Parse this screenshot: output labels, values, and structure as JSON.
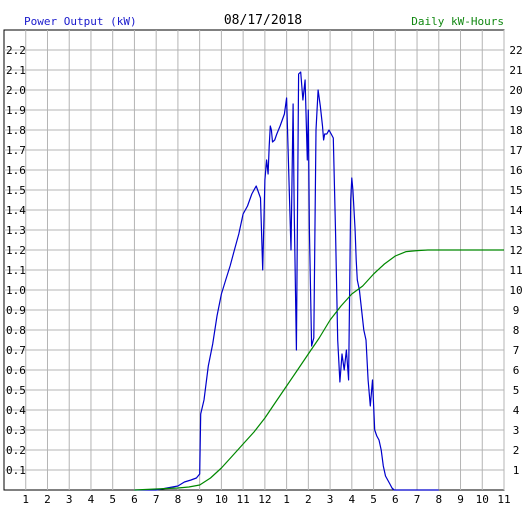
{
  "chart_data": {
    "type": "line",
    "date": "08/17/2018",
    "left_axis_label": "Power Output (kW)",
    "right_axis_label": "Daily kW-Hours",
    "left_ylim": [
      0,
      2.3
    ],
    "right_ylim": [
      0,
      23
    ],
    "xlim": [
      0,
      23
    ],
    "x_tick_labels": [
      "1",
      "2",
      "3",
      "4",
      "5",
      "6",
      "7",
      "8",
      "9",
      "10",
      "11",
      "12",
      "1",
      "2",
      "3",
      "4",
      "5",
      "6",
      "7",
      "8",
      "9",
      "10",
      "11"
    ],
    "left_tick_labels": [
      "0.1",
      "0.2",
      "0.3",
      "0.4",
      "0.5",
      "0.6",
      "0.7",
      "0.8",
      "0.9",
      "1.0",
      "1.1",
      "1.2",
      "1.3",
      "1.4",
      "1.5",
      "1.6",
      "1.7",
      "1.8",
      "1.9",
      "2.0",
      "2.1",
      "2.2"
    ],
    "right_tick_labels": [
      "1",
      "2",
      "3",
      "4",
      "5",
      "6",
      "7",
      "8",
      "9",
      "10",
      "11",
      "12",
      "13",
      "14",
      "15",
      "16",
      "17",
      "18",
      "19",
      "20",
      "21",
      "22"
    ],
    "grid": true,
    "series": [
      {
        "name": "Power Output (kW)",
        "axis": "left",
        "color": "#0000cc",
        "x": [
          6.0,
          6.5,
          7.0,
          7.5,
          8.0,
          8.3,
          8.6,
          8.85,
          9.0,
          9.05,
          9.2,
          9.4,
          9.6,
          9.8,
          10.0,
          10.2,
          10.4,
          10.6,
          10.8,
          11.0,
          11.2,
          11.4,
          11.6,
          11.8,
          11.9,
          12.0,
          12.08,
          12.15,
          12.2,
          12.25,
          12.3,
          12.35,
          12.45,
          12.55,
          12.7,
          12.9,
          13.0,
          13.2,
          13.3,
          13.35,
          13.45,
          13.55,
          13.65,
          13.75,
          13.85,
          13.95,
          14.0,
          14.05,
          14.15,
          14.25,
          14.35,
          14.45,
          14.55,
          14.65,
          14.7,
          14.75,
          14.85,
          14.95,
          15.05,
          15.15,
          15.25,
          15.35,
          15.45,
          15.55,
          15.65,
          15.75,
          15.85,
          15.95,
          16.0,
          16.05,
          16.15,
          16.2,
          16.25,
          16.35,
          16.45,
          16.55,
          16.65,
          16.75,
          16.85,
          16.95,
          17.05,
          17.15,
          17.25,
          17.35,
          17.45,
          17.55,
          17.65,
          17.75,
          17.85,
          17.95,
          18.05,
          18.15,
          18.25,
          18.35,
          18.45,
          18.55,
          18.65,
          18.75,
          18.85,
          19.0,
          19.2,
          19.4,
          19.6,
          19.8,
          20.0
        ],
        "y": [
          0.0,
          0.0,
          0.0,
          0.01,
          0.02,
          0.04,
          0.05,
          0.06,
          0.08,
          0.38,
          0.45,
          0.62,
          0.73,
          0.87,
          0.98,
          1.05,
          1.12,
          1.2,
          1.28,
          1.38,
          1.42,
          1.48,
          1.52,
          1.46,
          1.1,
          1.55,
          1.65,
          1.58,
          1.72,
          1.82,
          1.8,
          1.74,
          1.75,
          1.78,
          1.82,
          1.88,
          1.96,
          1.2,
          1.93,
          1.4,
          0.7,
          2.08,
          2.09,
          1.95,
          2.05,
          1.65,
          1.9,
          1.3,
          0.72,
          0.76,
          1.8,
          2.0,
          1.92,
          1.82,
          1.75,
          1.78,
          1.78,
          1.8,
          1.78,
          1.76,
          1.3,
          0.75,
          0.54,
          0.68,
          0.6,
          0.7,
          0.55,
          1.45,
          1.56,
          1.5,
          1.3,
          1.15,
          1.05,
          1.0,
          0.9,
          0.8,
          0.75,
          0.55,
          0.42,
          0.55,
          0.3,
          0.27,
          0.25,
          0.2,
          0.12,
          0.07,
          0.05,
          0.03,
          0.01,
          0.0,
          0.0,
          0.0,
          0.0,
          0.0,
          0.0,
          0.0,
          0.0,
          0.0,
          0.0,
          0.0,
          0.0,
          0.0,
          0.0,
          0.0,
          0.0
        ]
      },
      {
        "name": "Daily kW-Hours",
        "axis": "right",
        "color": "#008800",
        "x": [
          6.0,
          7.0,
          8.0,
          8.5,
          9.0,
          9.5,
          10.0,
          10.5,
          11.0,
          11.5,
          12.0,
          12.5,
          13.0,
          13.5,
          14.0,
          14.5,
          15.0,
          15.5,
          16.0,
          16.5,
          17.0,
          17.5,
          18.0,
          18.5,
          19.0,
          19.5,
          20.0,
          21.0,
          22.0,
          23.0
        ],
        "y": [
          0.0,
          0.05,
          0.1,
          0.15,
          0.25,
          0.6,
          1.1,
          1.7,
          2.3,
          2.9,
          3.6,
          4.4,
          5.2,
          6.0,
          6.8,
          7.6,
          8.5,
          9.2,
          9.8,
          10.2,
          10.8,
          11.3,
          11.7,
          11.92,
          11.97,
          12.0,
          12.0,
          12.0,
          12.0,
          12.0
        ]
      }
    ]
  }
}
